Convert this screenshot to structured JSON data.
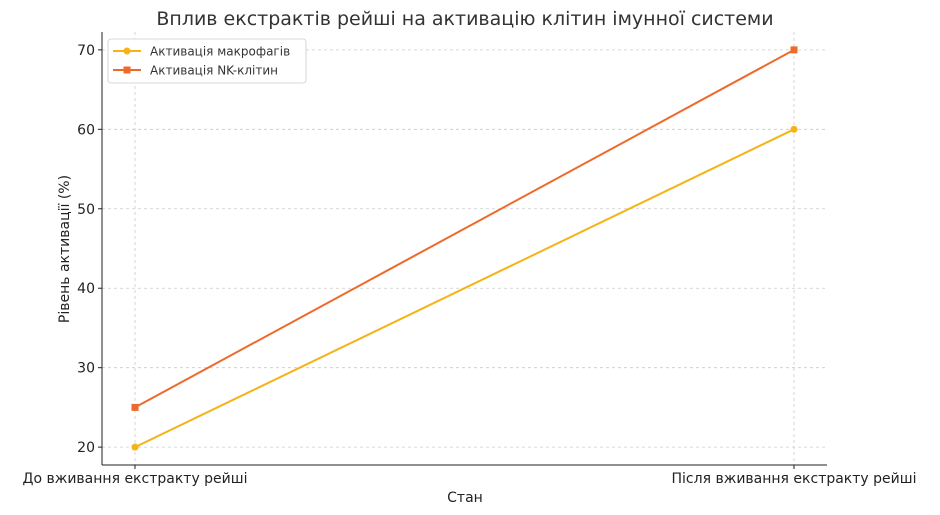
{
  "chart_data": {
    "type": "line",
    "title": "Вплив екстрактів рейші на активацію клітин імунної системи",
    "xlabel": "Стан",
    "ylabel": "Рівень активації (%)",
    "categories": [
      "До вживання екстракту рейші",
      "Після вживання екстракту рейші"
    ],
    "ylim": [
      17.75,
      72.25
    ],
    "yticks": [
      20,
      30,
      40,
      50,
      60,
      70
    ],
    "grid": true,
    "legend": "top-left",
    "series": [
      {
        "name": "Активація макрофагів",
        "values": [
          20,
          60
        ],
        "color": "#f5b316",
        "marker": "circle"
      },
      {
        "name": "Активація NK-клітин",
        "values": [
          25,
          70
        ],
        "color": "#ee6a2a",
        "marker": "square"
      }
    ]
  }
}
